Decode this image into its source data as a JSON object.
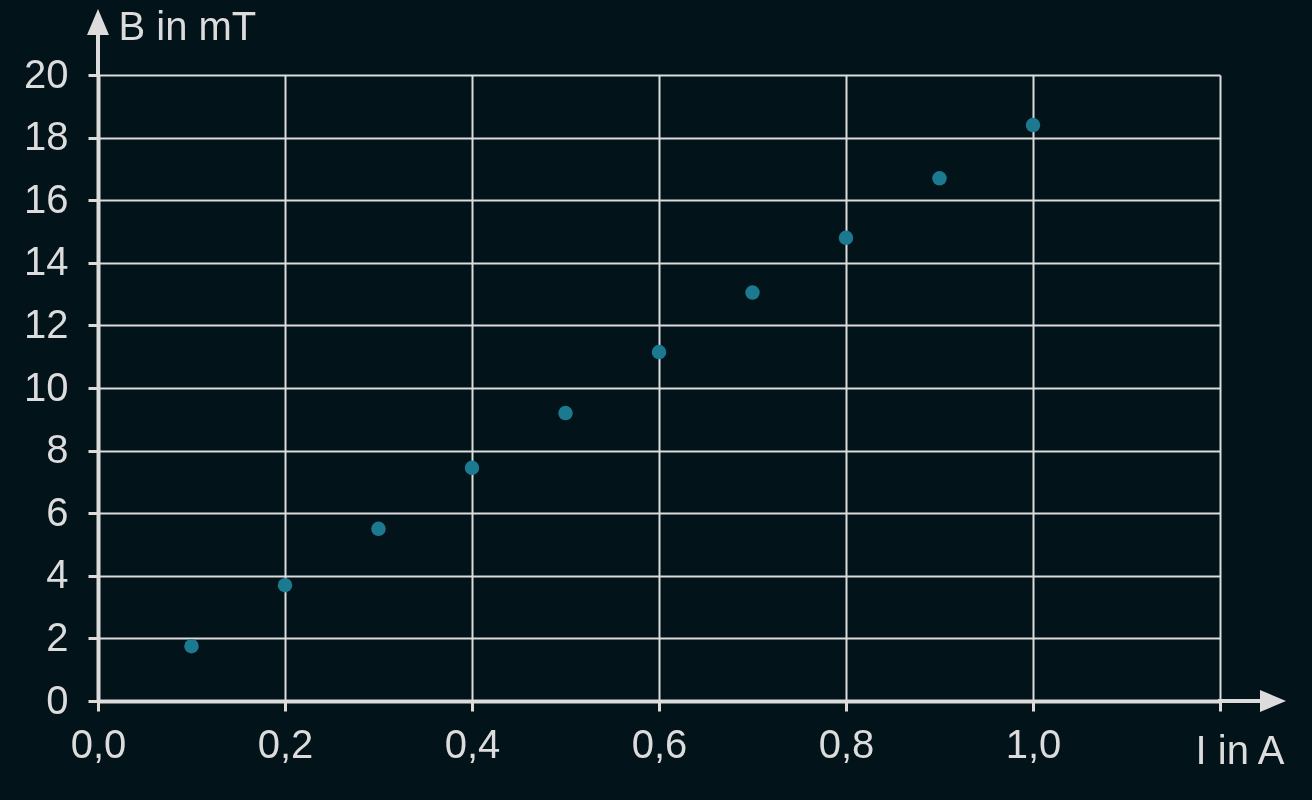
{
  "chart_data": {
    "type": "scatter",
    "xlabel": "I in A",
    "ylabel": "B in mT",
    "x": [
      0.1,
      0.2,
      0.3,
      0.4,
      0.5,
      0.6,
      0.7,
      0.8,
      0.9,
      1.0
    ],
    "values": [
      1.75,
      3.7,
      5.5,
      7.45,
      9.2,
      11.15,
      13.05,
      14.8,
      16.7,
      18.4
    ],
    "color": "#1b7a90",
    "marker": "circle",
    "xlim": [
      0,
      1.2
    ],
    "ylim": [
      0,
      20
    ],
    "xticks": [
      {
        "value": 0,
        "label": "0,0"
      },
      {
        "value": 0.2,
        "label": "0,2"
      },
      {
        "value": 0.4,
        "label": "0,4"
      },
      {
        "value": 0.6,
        "label": "0,6"
      },
      {
        "value": 0.8,
        "label": "0,8"
      },
      {
        "value": 1.0,
        "label": "1,0"
      },
      {
        "value": 1.2,
        "label": null
      }
    ],
    "yticks": [
      0,
      2,
      4,
      6,
      8,
      10,
      12,
      14,
      16,
      18,
      20
    ],
    "grid": true
  }
}
